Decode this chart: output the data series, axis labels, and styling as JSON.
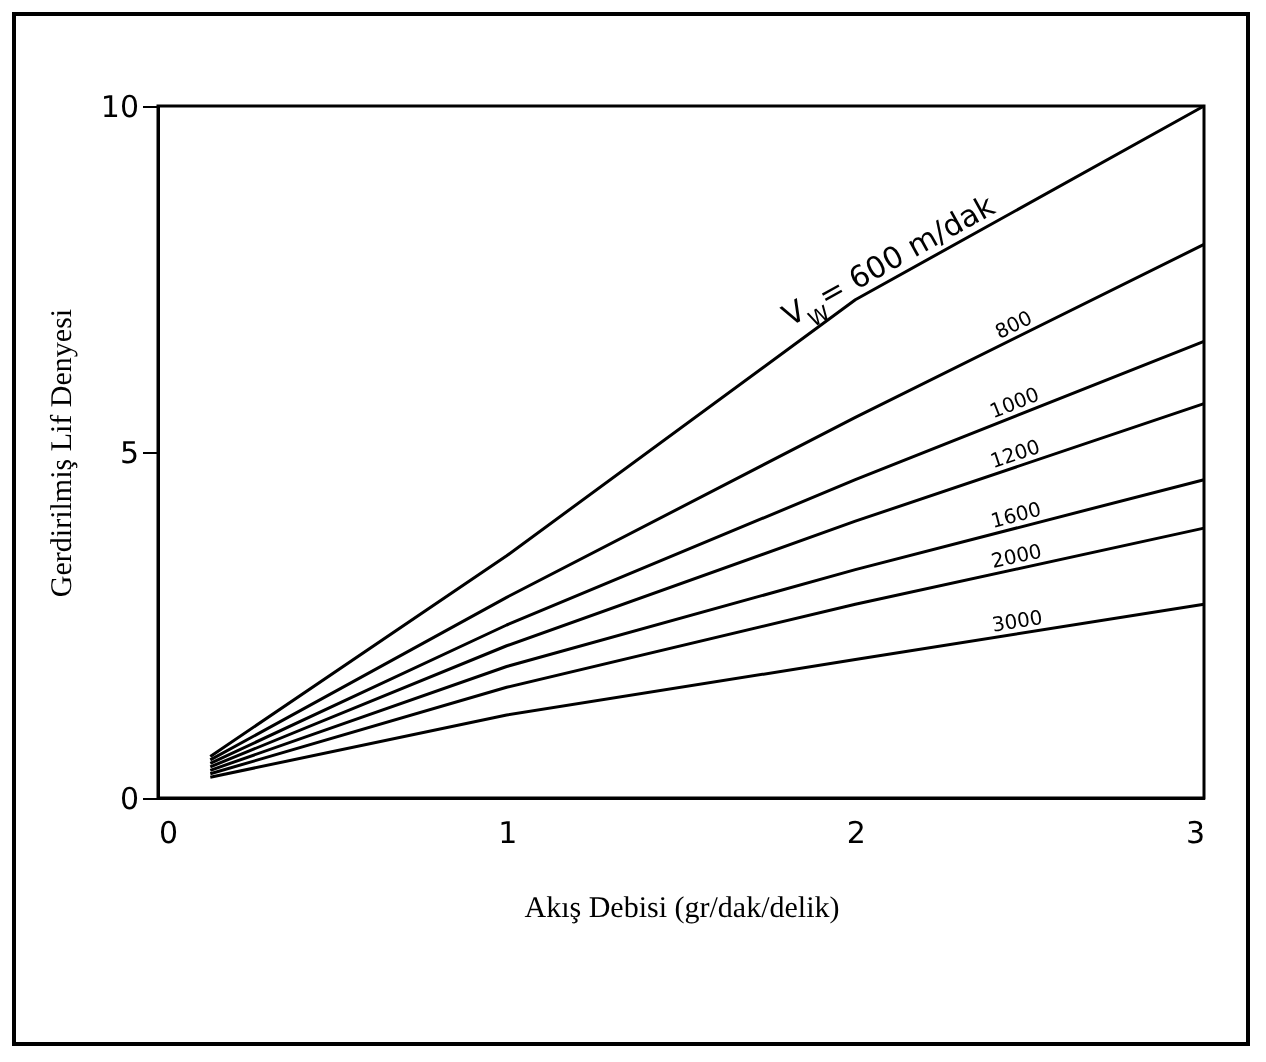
{
  "chart_data": {
    "type": "line",
    "xlabel": "Akış Debisi (gr/dak/delik)",
    "ylabel": "Gerdirilmiş Lif Denyesi",
    "x": [
      0.15,
      1,
      2,
      3
    ],
    "series": [
      {
        "name": "V$_{W}$= 600 m/dak",
        "color": "#000000",
        "values": [
          0.6,
          3.5,
          7.2,
          10.0
        ]
      },
      {
        "name": "800",
        "color": "#000000",
        "values": [
          0.55,
          2.9,
          5.5,
          8.0
        ]
      },
      {
        "name": "1000",
        "color": "#000000",
        "values": [
          0.5,
          2.5,
          4.6,
          6.6
        ]
      },
      {
        "name": "1200",
        "color": "#000000",
        "values": [
          0.45,
          2.2,
          4.0,
          5.7
        ]
      },
      {
        "name": "1600",
        "color": "#000000",
        "values": [
          0.4,
          1.9,
          3.3,
          4.6
        ]
      },
      {
        "name": "2000",
        "color": "#000000",
        "values": [
          0.35,
          1.6,
          2.8,
          3.9
        ]
      },
      {
        "name": "3000",
        "color": "#000000",
        "values": [
          0.3,
          1.2,
          2.0,
          2.8
        ]
      }
    ],
    "xlim": [
      0,
      3
    ],
    "ylim": [
      0,
      10
    ],
    "xticks": [
      0,
      1,
      2,
      3
    ],
    "yticks": [
      0,
      5,
      10
    ],
    "grid": false,
    "legend": false,
    "marker": "none",
    "line_style": "solid"
  }
}
